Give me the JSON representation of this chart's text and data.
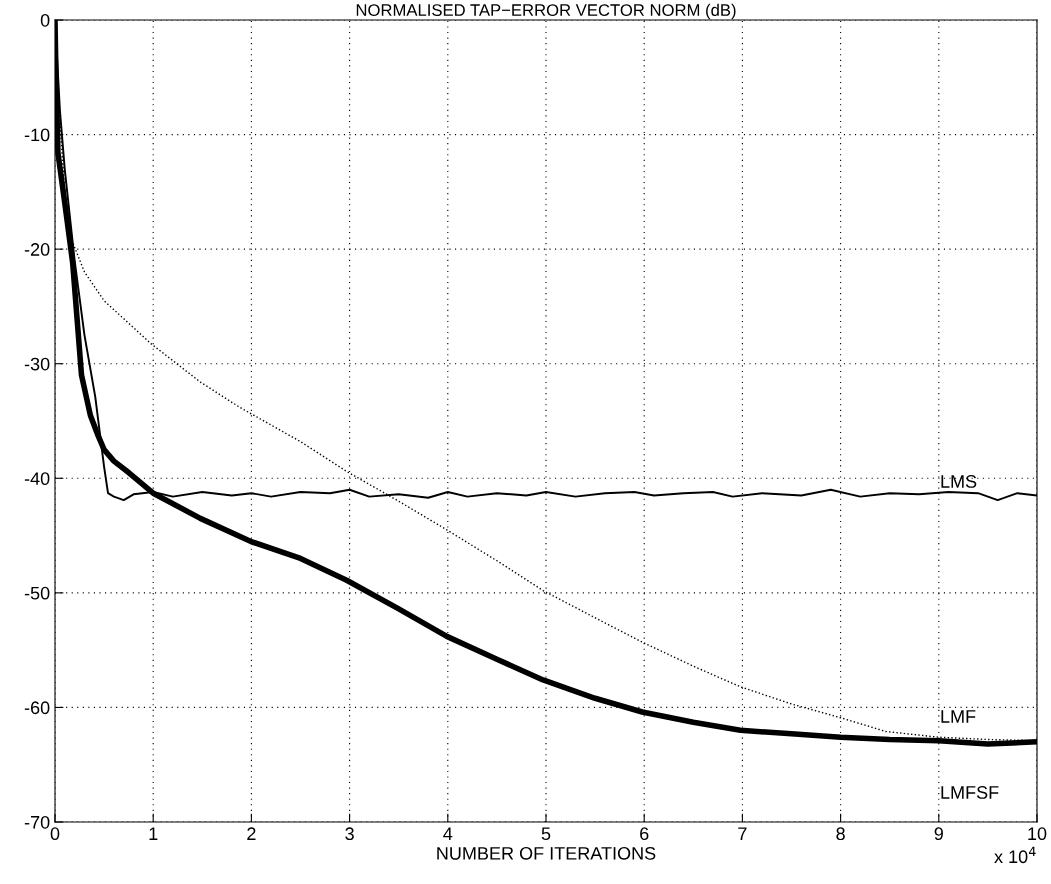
{
  "chart_data": {
    "type": "line",
    "title": "NORMALISED TAP−ERROR VECTOR NORM (dB)",
    "xlabel": "NUMBER OF ITERATIONS",
    "xlim": [
      0,
      10
    ],
    "xticks": [
      0,
      1,
      2,
      3,
      4,
      5,
      6,
      7,
      8,
      9,
      10
    ],
    "ylim": [
      -70,
      0
    ],
    "yticks": [
      -70,
      -60,
      -50,
      -40,
      -30,
      -20,
      -10,
      0
    ],
    "grid": true,
    "legend": false,
    "series": [
      {
        "color": "#000000",
        "line_style": "solid",
        "x": [
          0,
          0.05,
          0.1,
          0.2,
          0.3,
          0.41,
          0.5,
          0.54,
          0.6,
          0.7,
          0.8,
          1.0,
          1.2,
          1.5,
          1.8,
          2.0,
          2.2,
          2.5,
          2.8,
          3.0,
          3.2,
          3.5,
          3.8,
          4.0,
          4.2,
          4.5,
          4.8,
          5.0,
          5.3,
          5.6,
          5.9,
          6.1,
          6.4,
          6.7,
          6.9,
          7.2,
          7.6,
          7.9,
          8.2,
          8.5,
          8.8,
          9.1,
          9.4,
          9.6,
          9.8,
          10.0
        ],
        "values": [
          0,
          -7.9,
          -13.1,
          -21,
          -27.5,
          -32.9,
          -39,
          -41.3,
          -41.6,
          -41.9,
          -41.4,
          -41.2,
          -41.6,
          -41.2,
          -41.5,
          -41.3,
          -41.6,
          -41.2,
          -41.3,
          -41.0,
          -41.6,
          -41.4,
          -41.7,
          -41.2,
          -41.6,
          -41.3,
          -41.5,
          -41.2,
          -41.6,
          -41.3,
          -41.2,
          -41.5,
          -41.3,
          -41.2,
          -41.6,
          -41.3,
          -41.5,
          -41.0,
          -41.6,
          -41.3,
          -41.4,
          -41.2,
          -41.3,
          -41.9,
          -41.3,
          -41.5
        ]
      },
      {
        "color": "#000000",
        "line_style": "dotted",
        "x": [
          0,
          0.05,
          0.1,
          0.17,
          0.3,
          0.5,
          0.97,
          1.48,
          1.88,
          2.5,
          2.97,
          3.5,
          3.99,
          4.5,
          4.97,
          5.55,
          5.98,
          6.5,
          6.98,
          7.5,
          8.0,
          8.46,
          9.0,
          9.5,
          10.0
        ],
        "values": [
          0,
          -9,
          -15,
          -19.2,
          -22,
          -24.5,
          -28.2,
          -31.6,
          -33.8,
          -36.8,
          -39.4,
          -42,
          -44.5,
          -47.2,
          -49.8,
          -52.4,
          -54.3,
          -56.4,
          -58.2,
          -59.7,
          -60.9,
          -62.1,
          -62.6,
          -62.8,
          -62.9
        ]
      },
      {
        "color": "#000000",
        "line_style": "solid",
        "x": [
          0,
          0.01,
          0.03,
          0.1,
          0.18,
          0.27,
          0.36,
          0.44,
          0.5,
          0.6,
          0.75,
          1.0,
          1.48,
          1.99,
          2.5,
          2.97,
          3.5,
          3.99,
          4.5,
          4.97,
          5.5,
          5.98,
          6.5,
          6.98,
          7.5,
          8.0,
          8.5,
          9.0,
          9.5,
          10.0
        ],
        "values": [
          0,
          -5,
          -11.6,
          -16,
          -21.2,
          -31,
          -34.5,
          -36.3,
          -37.5,
          -38.5,
          -39.5,
          -41.3,
          -43.5,
          -45.5,
          -47,
          -48.9,
          -51.4,
          -53.8,
          -55.8,
          -57.6,
          -59.2,
          -60.4,
          -61.3,
          -62.0,
          -62.3,
          -62.6,
          -62.8,
          -62.9,
          -63.2,
          -63.0
        ]
      }
    ],
    "annotations": [
      "LMS",
      "LMF",
      "LMFSF",
      "x 10$^{4}$"
    ]
  }
}
